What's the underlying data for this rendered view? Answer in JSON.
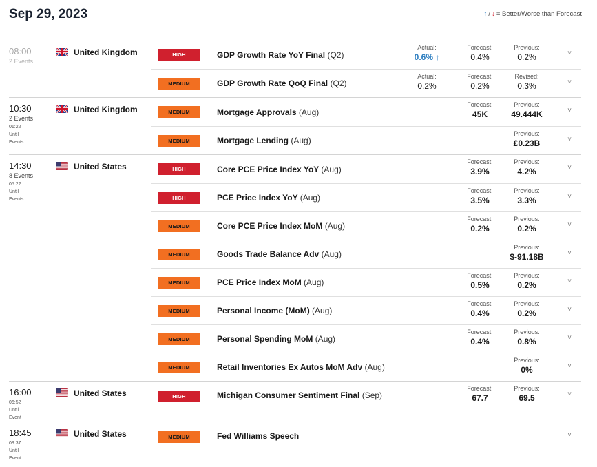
{
  "header": {
    "date": "Sep 29, 2023",
    "legend_text": "= Better/Worse than Forecast",
    "legend_sep": "/"
  },
  "groups": [
    {
      "time": "08:00",
      "past": true,
      "events_count": "2 Events",
      "until": [],
      "country": "United Kingdom",
      "flag": "uk",
      "events": [
        {
          "impact": "HIGH",
          "name": "GDP Growth Rate YoY Final",
          "period": "(Q2)",
          "actual_label": "Actual:",
          "actual": "0.6%",
          "actual_better": true,
          "forecast_label": "Forecast:",
          "forecast": "0.4%",
          "previous_label": "Previous:",
          "previous": "0.2%"
        },
        {
          "impact": "MEDIUM",
          "name": "GDP Growth Rate QoQ Final",
          "period": "(Q2)",
          "actual_label": "Actual:",
          "actual": "0.2%",
          "actual_better": false,
          "forecast_label": "Forecast:",
          "forecast": "0.2%",
          "previous_label": "Revised:",
          "previous": "0.3%"
        }
      ]
    },
    {
      "time": "10:30",
      "past": false,
      "events_count": "2 Events",
      "until": [
        "01:22",
        "Until",
        "Events"
      ],
      "country": "United Kingdom",
      "flag": "uk",
      "events": [
        {
          "impact": "MEDIUM",
          "name": "Mortgage Approvals",
          "period": "(Aug)",
          "forecast_label": "Forecast:",
          "forecast": "45K",
          "previous_label": "Previous:",
          "previous": "49.444K"
        },
        {
          "impact": "MEDIUM",
          "name": "Mortgage Lending",
          "period": "(Aug)",
          "previous_label": "Previous:",
          "previous": "£0.23B"
        }
      ]
    },
    {
      "time": "14:30",
      "past": false,
      "events_count": "8 Events",
      "until": [
        "05:22",
        "Until",
        "Events"
      ],
      "country": "United States",
      "flag": "us",
      "events": [
        {
          "impact": "HIGH",
          "name": "Core PCE Price Index YoY",
          "period": "(Aug)",
          "forecast_label": "Forecast:",
          "forecast": "3.9%",
          "previous_label": "Previous:",
          "previous": "4.2%"
        },
        {
          "impact": "HIGH",
          "name": "PCE Price Index YoY",
          "period": "(Aug)",
          "forecast_label": "Forecast:",
          "forecast": "3.5%",
          "previous_label": "Previous:",
          "previous": "3.3%"
        },
        {
          "impact": "MEDIUM",
          "name": "Core PCE Price Index MoM",
          "period": "(Aug)",
          "forecast_label": "Forecast:",
          "forecast": "0.2%",
          "previous_label": "Previous:",
          "previous": "0.2%"
        },
        {
          "impact": "MEDIUM",
          "name": "Goods Trade Balance Adv",
          "period": "(Aug)",
          "previous_label": "Previous:",
          "previous": "$-91.18B"
        },
        {
          "impact": "MEDIUM",
          "name": "PCE Price Index MoM",
          "period": "(Aug)",
          "forecast_label": "Forecast:",
          "forecast": "0.5%",
          "previous_label": "Previous:",
          "previous": "0.2%"
        },
        {
          "impact": "MEDIUM",
          "name": "Personal Income (MoM)",
          "period": "(Aug)",
          "forecast_label": "Forecast:",
          "forecast": "0.4%",
          "previous_label": "Previous:",
          "previous": "0.2%"
        },
        {
          "impact": "MEDIUM",
          "name": "Personal Spending MoM",
          "period": "(Aug)",
          "forecast_label": "Forecast:",
          "forecast": "0.4%",
          "previous_label": "Previous:",
          "previous": "0.8%"
        },
        {
          "impact": "MEDIUM",
          "name": "Retail Inventories Ex Autos MoM Adv",
          "period": "(Aug)",
          "previous_label": "Previous:",
          "previous": "0%"
        }
      ]
    },
    {
      "time": "16:00",
      "past": false,
      "events_count": "",
      "until": [
        "06:52",
        "Until",
        "Event"
      ],
      "country": "United States",
      "flag": "us",
      "tall": true,
      "events": [
        {
          "impact": "HIGH",
          "name": "Michigan Consumer Sentiment Final",
          "period": "(Sep)",
          "forecast_label": "Forecast:",
          "forecast": "67.7",
          "previous_label": "Previous:",
          "previous": "69.5"
        }
      ]
    },
    {
      "time": "18:45",
      "past": false,
      "events_count": "",
      "until": [
        "09:37",
        "Until",
        "Event"
      ],
      "country": "United States",
      "flag": "us",
      "tall": true,
      "events": [
        {
          "impact": "MEDIUM",
          "name": "Fed Williams Speech",
          "period": ""
        }
      ]
    }
  ],
  "icons": {
    "better": "arrow-up-blue",
    "worse": "arrow-down-red",
    "expand": "chevron-down"
  },
  "colors": {
    "high": "#d0202e",
    "medium": "#f26f21",
    "better": "#2f7fc1"
  }
}
